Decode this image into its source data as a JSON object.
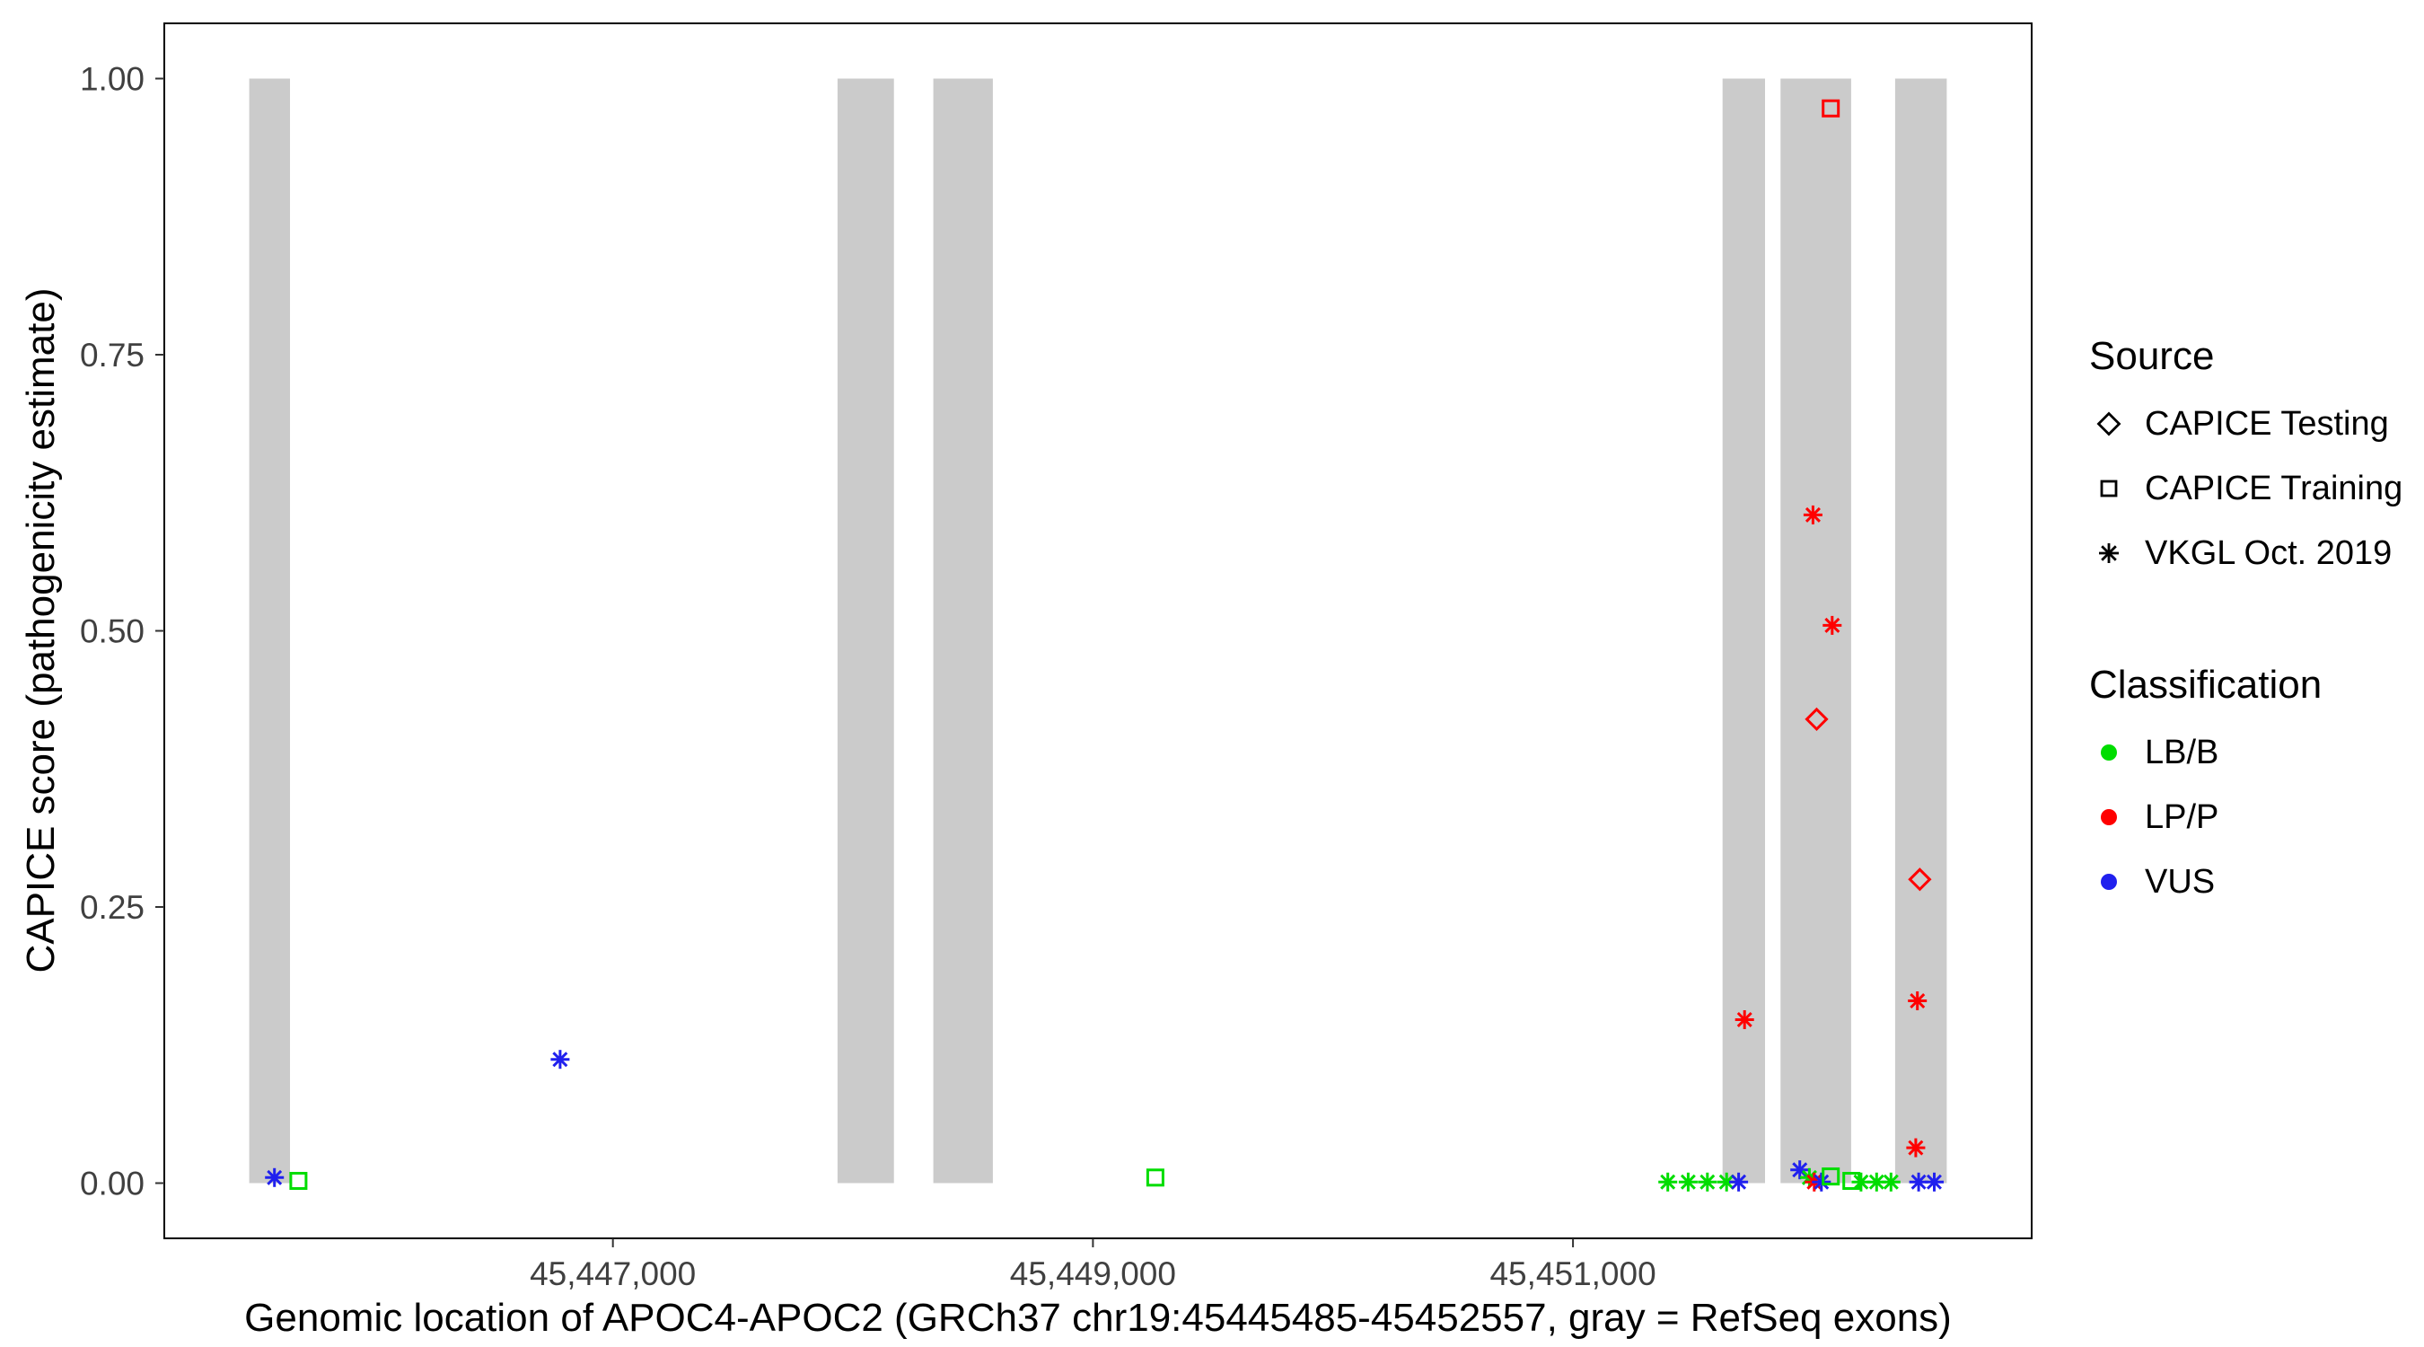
{
  "chart_data": {
    "type": "scatter",
    "title": "",
    "xlabel": "Genomic location of APOC4-APOC2 (GRCh37 chr19:45445485-45452557, gray = RefSeq exons)",
    "ylabel": "CAPICE score (pathogenicity estimate)",
    "x_domain": [
      45445131,
      45452911
    ],
    "y_domain": [
      -0.05,
      1.05
    ],
    "x_ticks": [
      {
        "value": 45447000,
        "label": "45,447,000"
      },
      {
        "value": 45449000,
        "label": "45,449,000"
      },
      {
        "value": 45451000,
        "label": "45,451,000"
      }
    ],
    "y_ticks": [
      {
        "value": 0.0,
        "label": "0.00"
      },
      {
        "value": 0.25,
        "label": "0.25"
      },
      {
        "value": 0.5,
        "label": "0.50"
      },
      {
        "value": 0.75,
        "label": "0.75"
      },
      {
        "value": 1.0,
        "label": "1.00"
      }
    ],
    "grid": false,
    "legend_position": "right",
    "exon_color": "#CBCBCB",
    "exon_y_range": [
      0,
      1
    ],
    "exons": [
      [
        45445485,
        45445655
      ],
      [
        45447936,
        45448171
      ],
      [
        45448335,
        45448583
      ],
      [
        45451623,
        45451800
      ],
      [
        45451865,
        45452159
      ],
      [
        45452342,
        45452557
      ]
    ],
    "legend": {
      "source_title": "Source",
      "sources": [
        {
          "id": "testing",
          "label": "CAPICE Testing",
          "shape": "diamond"
        },
        {
          "id": "training",
          "label": "CAPICE Training",
          "shape": "square"
        },
        {
          "id": "vkgl",
          "label": "VKGL Oct. 2019",
          "shape": "asterisk"
        }
      ],
      "classification_title": "Classification",
      "classes": [
        {
          "id": "LB/B",
          "label": "LB/B",
          "color": "#00DD00"
        },
        {
          "id": "LP/P",
          "label": "LP/P",
          "color": "#FF0000"
        },
        {
          "id": "VUS",
          "label": "VUS",
          "color": "#2020EE"
        }
      ]
    },
    "points": [
      {
        "x": 45445590,
        "y": 0.005,
        "source": "vkgl",
        "class": "VUS"
      },
      {
        "x": 45445690,
        "y": 0.002,
        "source": "training",
        "class": "LB/B"
      },
      {
        "x": 45446780,
        "y": 0.112,
        "source": "vkgl",
        "class": "VUS"
      },
      {
        "x": 45449260,
        "y": 0.005,
        "source": "training",
        "class": "LB/B"
      },
      {
        "x": 45451395,
        "y": 0.001,
        "source": "vkgl",
        "class": "LB/B"
      },
      {
        "x": 45451480,
        "y": 0.001,
        "source": "vkgl",
        "class": "LB/B"
      },
      {
        "x": 45451560,
        "y": 0.001,
        "source": "vkgl",
        "class": "LB/B"
      },
      {
        "x": 45451640,
        "y": 0.001,
        "source": "vkgl",
        "class": "LB/B"
      },
      {
        "x": 45451690,
        "y": 0.001,
        "source": "vkgl",
        "class": "VUS"
      },
      {
        "x": 45451715,
        "y": 0.148,
        "source": "vkgl",
        "class": "LP/P"
      },
      {
        "x": 45451945,
        "y": 0.012,
        "source": "vkgl",
        "class": "VUS"
      },
      {
        "x": 45451985,
        "y": 0.005,
        "source": "vkgl",
        "class": "LB/B"
      },
      {
        "x": 45452000,
        "y": 0.605,
        "source": "vkgl",
        "class": "LP/P"
      },
      {
        "x": 45452005,
        "y": 0.001,
        "source": "vkgl",
        "class": "LP/P"
      },
      {
        "x": 45452035,
        "y": 0.001,
        "source": "vkgl",
        "class": "VUS"
      },
      {
        "x": 45452015,
        "y": 0.42,
        "source": "testing",
        "class": "LP/P"
      },
      {
        "x": 45452074,
        "y": 0.973,
        "source": "training",
        "class": "LP/P"
      },
      {
        "x": 45452074,
        "y": 0.006,
        "source": "training",
        "class": "LB/B"
      },
      {
        "x": 45452080,
        "y": 0.505,
        "source": "vkgl",
        "class": "LP/P"
      },
      {
        "x": 45452160,
        "y": 0.002,
        "source": "training",
        "class": "LB/B"
      },
      {
        "x": 45452200,
        "y": 0.001,
        "source": "vkgl",
        "class": "LB/B"
      },
      {
        "x": 45452265,
        "y": 0.001,
        "source": "vkgl",
        "class": "LB/B"
      },
      {
        "x": 45452325,
        "y": 0.001,
        "source": "vkgl",
        "class": "LB/B"
      },
      {
        "x": 45452428,
        "y": 0.032,
        "source": "vkgl",
        "class": "LP/P"
      },
      {
        "x": 45452435,
        "y": 0.165,
        "source": "vkgl",
        "class": "LP/P"
      },
      {
        "x": 45452445,
        "y": 0.275,
        "source": "testing",
        "class": "LP/P"
      },
      {
        "x": 45452440,
        "y": 0.001,
        "source": "vkgl",
        "class": "VUS"
      },
      {
        "x": 45452505,
        "y": 0.001,
        "source": "vkgl",
        "class": "VUS"
      }
    ]
  }
}
